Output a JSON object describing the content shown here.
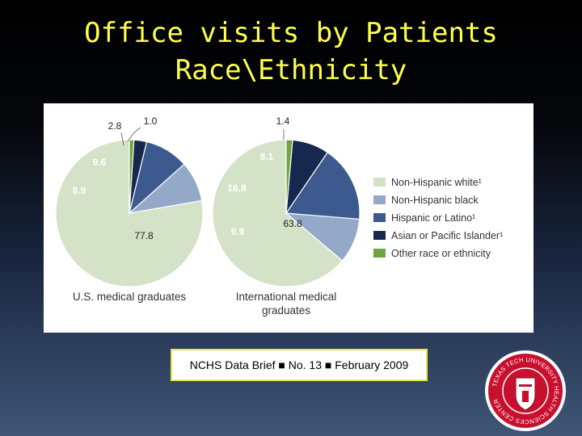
{
  "slide": {
    "title_line1": "Office visits by Patients",
    "title_line2": "Race\\Ethnicity",
    "citation": "NCHS Data Brief ■ No. 13 ■ February 2009"
  },
  "colors": {
    "title": "#ffff4a",
    "non_hispanic_white": "#d4e2c8",
    "non_hispanic_black": "#94a8c8",
    "hispanic_or_latino": "#3c5a8e",
    "asian_or_pacific_islander": "#16284d",
    "other_race": "#6ea641",
    "seal_red": "#c8102e"
  },
  "seal": {
    "text": "TEXAS TECH UNIVERSITY HEALTH SCIENCES CENTER"
  },
  "chart_data": {
    "type": "pie",
    "legend": {
      "placement": "right",
      "entries": [
        "Non-Hispanic white¹",
        "Non-Hispanic black",
        "Hispanic or Latino¹",
        "Asian or Pacific Islander¹",
        "Other race or ethnicity"
      ]
    },
    "pies": [
      {
        "name": "U.S. medical graduates",
        "slices": [
          {
            "label": "Non-Hispanic white¹",
            "value": 77.8
          },
          {
            "label": "Non-Hispanic black",
            "value": 8.9
          },
          {
            "label": "Hispanic or Latino¹",
            "value": 9.6
          },
          {
            "label": "Asian or Pacific Islander¹",
            "value": 2.8
          },
          {
            "label": "Other race or ethnicity",
            "value": 1.0
          }
        ],
        "value_labels": [
          "77.8",
          "8.9",
          "9.6",
          "2.8",
          "1.0"
        ]
      },
      {
        "name": "International medical graduates",
        "slices": [
          {
            "label": "Non-Hispanic white¹",
            "value": 63.8
          },
          {
            "label": "Non-Hispanic black",
            "value": 9.9
          },
          {
            "label": "Hispanic or Latino¹",
            "value": 16.8
          },
          {
            "label": "Asian or Pacific Islander¹",
            "value": 8.1
          },
          {
            "label": "Other race or ethnicity",
            "value": 1.4
          }
        ],
        "value_labels": [
          "63.8",
          "9.9",
          "16.8",
          "8.1",
          "1.4"
        ]
      }
    ]
  }
}
